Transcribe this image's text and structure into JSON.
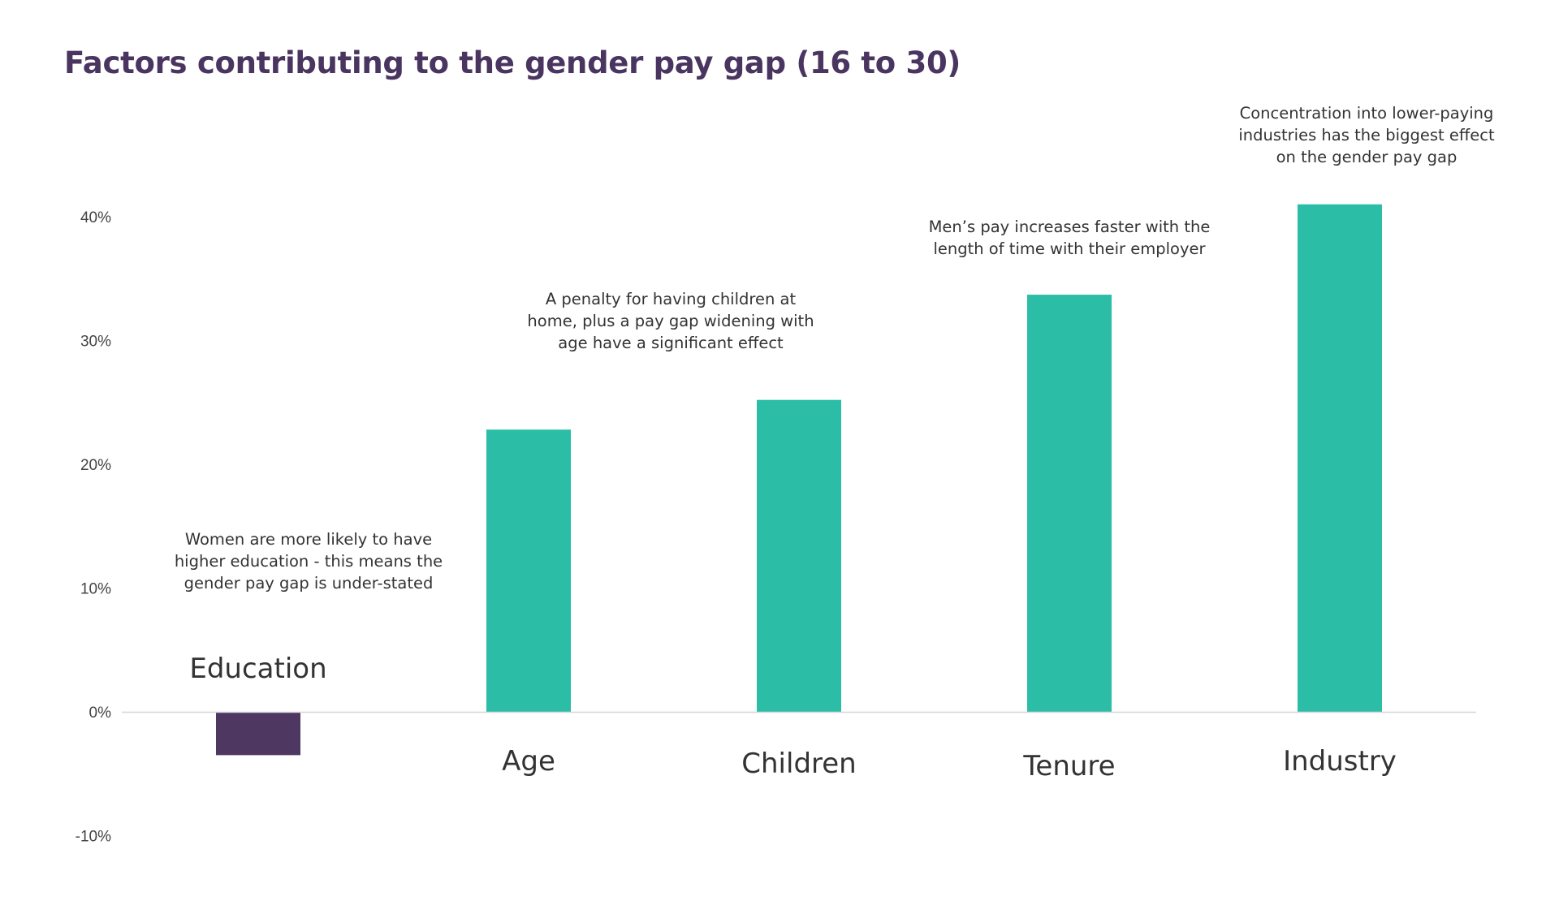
{
  "chart_data": {
    "type": "bar",
    "title": "Factors contributing to the gender pay gap (16 to 30)",
    "xlabel": "",
    "ylabel": "",
    "ylim": [
      -10,
      40
    ],
    "yticks": [
      -10,
      0,
      10,
      20,
      30,
      40
    ],
    "ytick_labels": [
      "-10%",
      "0%",
      "10%",
      "20%",
      "30%",
      "40%"
    ],
    "grid": false,
    "categories": [
      "Education",
      "Age",
      "Children",
      "Tenure",
      "Industry"
    ],
    "values": [
      -3.5,
      22.8,
      25.2,
      33.7,
      41.0
    ],
    "colors": {
      "negative": "#4e3861",
      "positive": "#2bbda5",
      "title": "#4a3561",
      "axis": "#d5d5dd"
    },
    "annotations": [
      {
        "target": "Education",
        "lines": [
          "Women are more likely to have",
          "higher education - this means the",
          "gender pay gap is under-stated"
        ]
      },
      {
        "target": "Age",
        "lines": [
          "A penalty for having children at",
          "home, plus a pay gap widening with",
          "age have a significant effect"
        ]
      },
      {
        "target": "Tenure",
        "lines": [
          "Men’s pay increases faster with the",
          "length of time with their employer"
        ]
      },
      {
        "target": "Industry",
        "lines": [
          "Concentration into lower-paying",
          "industries has the biggest effect",
          "on the gender pay gap"
        ]
      }
    ]
  }
}
